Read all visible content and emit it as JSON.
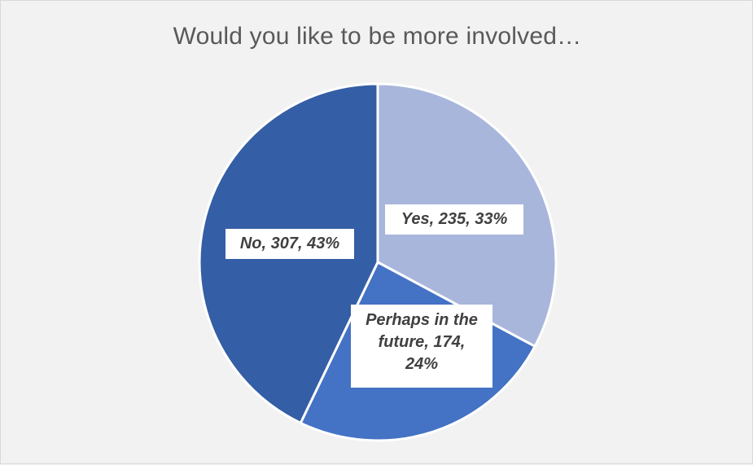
{
  "chart_data": {
    "type": "pie",
    "title": "Would you like to be more involved…",
    "categories": [
      "Yes",
      "Perhaps in the future",
      "No"
    ],
    "values": [
      235,
      174,
      307
    ],
    "percentages": [
      "33%",
      "24%",
      "43%"
    ],
    "data_labels": [
      "Yes, 235, 33%",
      "Perhaps in the future, 174, 24%",
      "No, 307, 43%"
    ],
    "colors": [
      "#a9b6dc",
      "#4472c4",
      "#345ea5"
    ],
    "start_angle_deg": 0,
    "direction": "clockwise",
    "legend": "none"
  }
}
